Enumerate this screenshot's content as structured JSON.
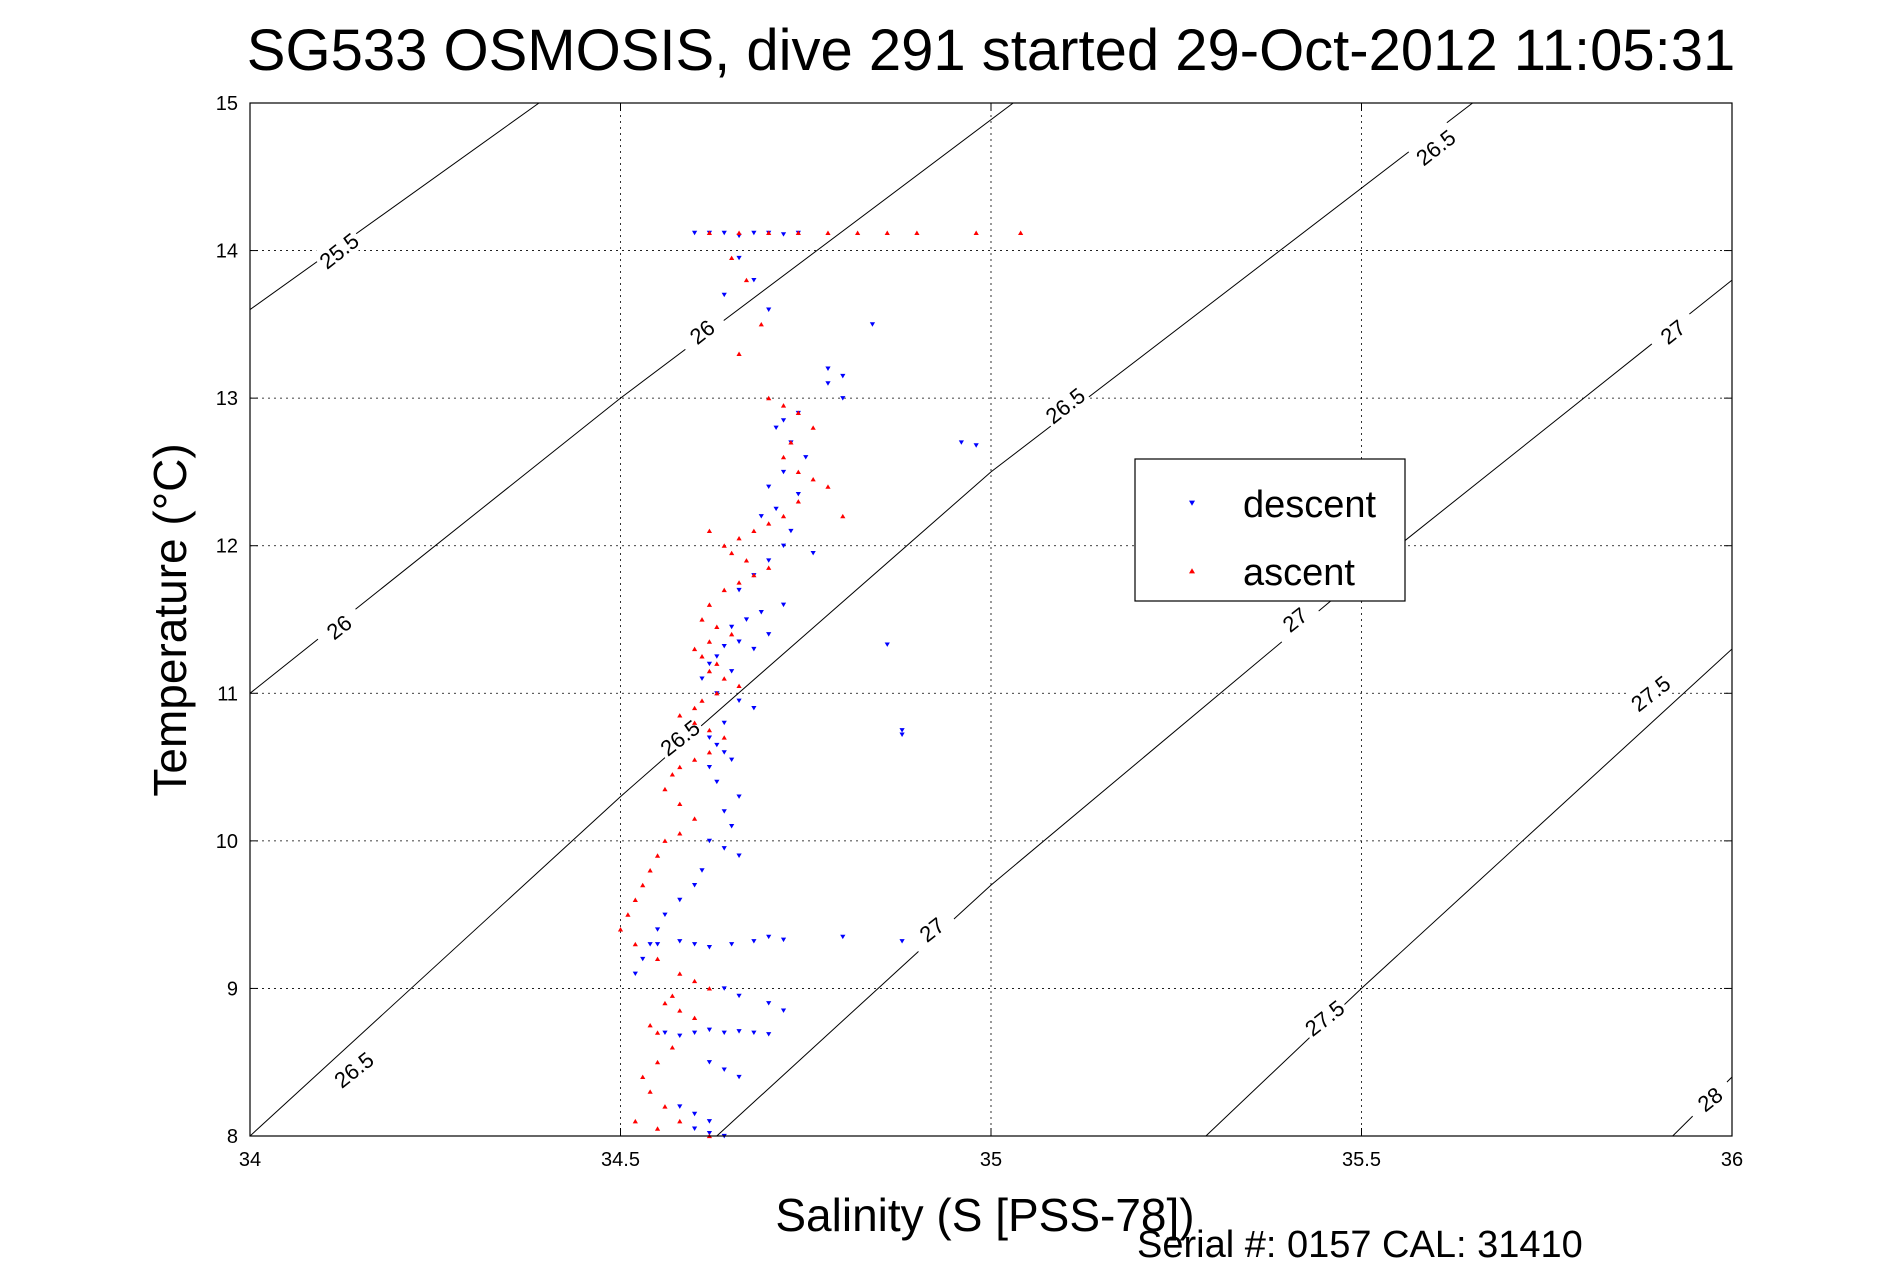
{
  "chart_data": {
    "type": "scatter",
    "title": "SG533 OSMOSIS, dive 291 started 29-Oct-2012 11:05:31",
    "xlabel": "Salinity (S [PSS-78])",
    "ylabel": "Temperature (°C)",
    "xlim": [
      34,
      36
    ],
    "ylim": [
      8,
      15
    ],
    "xticks": [
      "34",
      "34.5",
      "35",
      "35.5",
      "36"
    ],
    "yticks": [
      "8",
      "9",
      "10",
      "11",
      "12",
      "13",
      "14",
      "15"
    ],
    "grid": true,
    "legend_position": "right",
    "footer": "Serial #: 0157  CAL: 31410",
    "contours": [
      {
        "label": "25.5",
        "points": [
          [
            34,
            13.6
          ],
          [
            34.39,
            15
          ]
        ],
        "label_at": [
          34.12,
          14.0
        ]
      },
      {
        "label": "26",
        "points": [
          [
            34.0,
            11.0
          ],
          [
            34.5,
            13.0
          ],
          [
            35.03,
            15
          ]
        ],
        "label_at": [
          34.61,
          13.45
        ]
      },
      {
        "label": "26",
        "points": [],
        "label_at": [
          34.12,
          11.45
        ]
      },
      {
        "label": "26.5",
        "points": [
          [
            34.0,
            8.0
          ],
          [
            34.5,
            10.3
          ],
          [
            35.0,
            12.5
          ],
          [
            35.65,
            15
          ]
        ],
        "label_at": [
          34.58,
          10.7
        ]
      },
      {
        "label": "26.5",
        "points": [],
        "label_at": [
          34.14,
          8.45
        ]
      },
      {
        "label": "26.5",
        "points": [],
        "label_at": [
          35.1,
          12.95
        ]
      },
      {
        "label": "26.5",
        "points": [],
        "label_at": [
          35.6,
          14.7
        ]
      },
      {
        "label": "27",
        "points": [
          [
            34.63,
            8.0
          ],
          [
            35.0,
            9.7
          ],
          [
            35.5,
            11.8
          ],
          [
            36.0,
            13.8
          ]
        ],
        "label_at": [
          34.92,
          9.4
        ]
      },
      {
        "label": "27",
        "points": [],
        "label_at": [
          35.41,
          11.5
        ]
      },
      {
        "label": "27",
        "points": [],
        "label_at": [
          35.92,
          13.45
        ]
      },
      {
        "label": "27.5",
        "points": [
          [
            35.29,
            8.0
          ],
          [
            35.5,
            9.0
          ],
          [
            36.0,
            11.3
          ]
        ],
        "label_at": [
          35.45,
          8.8
        ]
      },
      {
        "label": "27.5",
        "points": [],
        "label_at": [
          35.89,
          11.0
        ]
      },
      {
        "label": "28",
        "points": [
          [
            35.92,
            8.0
          ],
          [
            36.0,
            8.4
          ]
        ],
        "label_at": [
          35.97,
          8.25
        ]
      }
    ],
    "series": [
      {
        "name": "descent",
        "color": "#0000ff",
        "marker": "triangle-down",
        "x": [
          34.6,
          34.62,
          34.64,
          34.66,
          34.68,
          34.7,
          34.72,
          34.74,
          34.66,
          34.68,
          34.64,
          34.7,
          34.78,
          34.8,
          34.74,
          34.72,
          34.71,
          34.73,
          34.75,
          34.72,
          34.7,
          34.74,
          34.71,
          34.69,
          34.73,
          34.72,
          34.76,
          34.7,
          34.68,
          34.66,
          34.72,
          34.69,
          34.67,
          34.65,
          34.7,
          34.66,
          34.64,
          34.68,
          34.63,
          34.62,
          34.65,
          34.61,
          34.63,
          34.66,
          34.68,
          34.64,
          34.62,
          34.86,
          34.88,
          34.63,
          34.64,
          34.65,
          34.62,
          34.63,
          34.66,
          34.88,
          34.64,
          34.65,
          34.62,
          34.64,
          34.66,
          34.61,
          34.6,
          34.58,
          34.56,
          34.55,
          34.54,
          34.53,
          34.52,
          34.55,
          34.58,
          34.6,
          34.62,
          34.65,
          34.68,
          34.7,
          34.72,
          34.8,
          34.88,
          34.64,
          34.66,
          34.7,
          34.72,
          34.56,
          34.58,
          34.6,
          34.62,
          34.64,
          34.66,
          34.68,
          34.7,
          34.62,
          34.64,
          34.66,
          34.58,
          34.6,
          34.62,
          34.6,
          34.62,
          34.64,
          34.96,
          34.98,
          34.84,
          34.78,
          34.8
        ],
        "y": [
          14.12,
          14.12,
          14.12,
          14.1,
          14.12,
          14.12,
          14.11,
          14.12,
          13.95,
          13.8,
          13.7,
          13.6,
          13.1,
          13.0,
          12.9,
          12.85,
          12.8,
          12.7,
          12.6,
          12.5,
          12.4,
          12.35,
          12.25,
          12.2,
          12.1,
          12.0,
          11.95,
          11.9,
          11.8,
          11.7,
          11.6,
          11.55,
          11.5,
          11.45,
          11.4,
          11.35,
          11.32,
          11.3,
          11.25,
          11.2,
          11.15,
          11.1,
          11.0,
          10.95,
          10.9,
          10.8,
          10.7,
          11.33,
          10.72,
          10.65,
          10.6,
          10.55,
          10.5,
          10.4,
          10.3,
          10.75,
          10.2,
          10.1,
          10.0,
          9.95,
          9.9,
          9.8,
          9.7,
          9.6,
          9.5,
          9.4,
          9.3,
          9.2,
          9.1,
          9.3,
          9.32,
          9.3,
          9.28,
          9.3,
          9.32,
          9.35,
          9.33,
          9.35,
          9.32,
          9.0,
          8.95,
          8.9,
          8.85,
          8.7,
          8.68,
          8.7,
          8.72,
          8.7,
          8.71,
          8.7,
          8.69,
          8.5,
          8.45,
          8.4,
          8.2,
          8.15,
          8.1,
          8.05,
          8.02,
          8.0,
          12.7,
          12.68,
          13.5,
          13.2,
          13.15
        ]
      },
      {
        "name": "ascent",
        "color": "#ff0000",
        "marker": "triangle-up",
        "x": [
          34.62,
          34.66,
          34.7,
          34.74,
          34.78,
          34.82,
          34.86,
          34.9,
          34.98,
          35.04,
          34.65,
          34.67,
          34.69,
          34.66,
          34.7,
          34.72,
          34.74,
          34.76,
          34.73,
          34.72,
          34.74,
          34.76,
          34.78,
          34.74,
          34.72,
          34.7,
          34.68,
          34.66,
          34.64,
          34.62,
          34.65,
          34.67,
          34.7,
          34.68,
          34.66,
          34.64,
          34.62,
          34.61,
          34.63,
          34.65,
          34.62,
          34.6,
          34.61,
          34.63,
          34.62,
          34.64,
          34.66,
          34.63,
          34.61,
          34.6,
          34.58,
          34.6,
          34.62,
          34.64,
          34.62,
          34.6,
          34.58,
          34.57,
          34.56,
          34.58,
          34.6,
          34.58,
          34.56,
          34.55,
          34.54,
          34.53,
          34.52,
          34.51,
          34.5,
          34.52,
          34.55,
          34.58,
          34.6,
          34.62,
          34.57,
          34.56,
          34.58,
          34.6,
          34.54,
          34.55,
          34.57,
          34.55,
          34.53,
          34.54,
          34.56,
          34.52,
          34.55,
          34.58,
          34.62,
          34.8
        ],
        "y": [
          14.12,
          14.12,
          14.12,
          14.12,
          14.12,
          14.12,
          14.12,
          14.12,
          14.12,
          14.12,
          13.95,
          13.8,
          13.5,
          13.3,
          13.0,
          12.95,
          12.9,
          12.8,
          12.7,
          12.6,
          12.5,
          12.45,
          12.4,
          12.3,
          12.2,
          12.15,
          12.1,
          12.05,
          12.0,
          12.1,
          11.95,
          11.9,
          11.85,
          11.8,
          11.75,
          11.7,
          11.6,
          11.5,
          11.45,
          11.4,
          11.35,
          11.3,
          11.25,
          11.2,
          11.15,
          11.1,
          11.05,
          11.0,
          10.95,
          10.9,
          10.85,
          10.8,
          10.75,
          10.7,
          10.6,
          10.55,
          10.5,
          10.45,
          10.35,
          10.25,
          10.15,
          10.05,
          10.0,
          9.9,
          9.8,
          9.7,
          9.6,
          9.5,
          9.4,
          9.3,
          9.2,
          9.1,
          9.05,
          9.0,
          8.95,
          8.9,
          8.85,
          8.8,
          8.75,
          8.7,
          8.6,
          8.5,
          8.4,
          8.3,
          8.2,
          8.1,
          8.05,
          8.1,
          8.0,
          12.2
        ]
      }
    ]
  }
}
